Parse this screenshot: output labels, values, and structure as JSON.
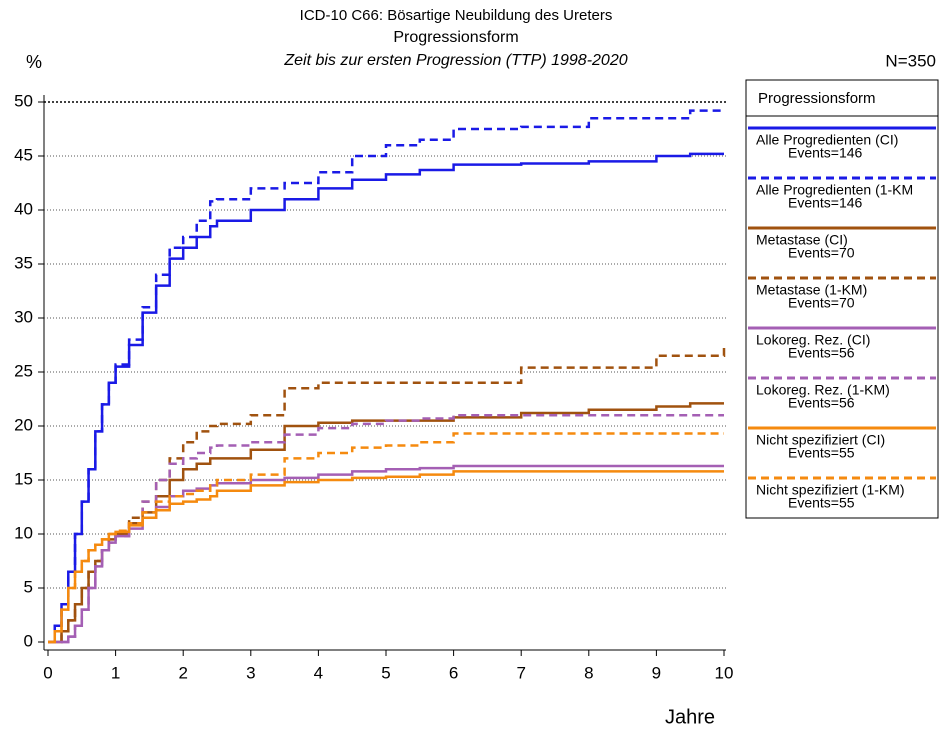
{
  "chart_data": {
    "type": "line",
    "title": "ICD-10 C66: Bösartige Neubildung des Ureters",
    "subtitle": "Progressionsform",
    "subtitle2": "Zeit bis zur ersten Progression (TTP) 1998-2020",
    "y_label": "%",
    "x_label": "Jahre",
    "n_label": "N=350",
    "legend_title": "Progressionsform",
    "step": true,
    "grid": true,
    "xlim": [
      0,
      10
    ],
    "xticks": [
      0,
      1,
      2,
      3,
      4,
      5,
      6,
      7,
      8,
      9,
      10
    ],
    "ylim": [
      0,
      50
    ],
    "yticks": [
      0,
      5,
      10,
      15,
      20,
      25,
      30,
      35,
      40,
      45,
      50
    ],
    "x": [
      0,
      0.1,
      0.2,
      0.3,
      0.4,
      0.5,
      0.6,
      0.7,
      0.8,
      0.9,
      1.0,
      1.2,
      1.4,
      1.6,
      1.8,
      2.0,
      2.2,
      2.4,
      2.5,
      3.0,
      3.5,
      4.0,
      4.5,
      5.0,
      5.5,
      6.0,
      7.0,
      8.0,
      9.0,
      9.5,
      10
    ],
    "series": [
      {
        "name": "Alle Progredienten (CI)",
        "events": "Events=146",
        "color": "#1a1ae6",
        "dashed": false,
        "values": [
          0,
          1.5,
          3.5,
          6.5,
          10,
          13,
          16,
          19.5,
          22,
          24,
          25.5,
          27.5,
          30.5,
          33,
          35.5,
          36.5,
          37.5,
          38.5,
          39,
          40,
          41,
          42,
          42.8,
          43.3,
          43.7,
          44.2,
          44.3,
          44.5,
          45,
          45.2,
          45.2
        ]
      },
      {
        "name": "Alle Progredienten (1-KM",
        "events": "Events=146",
        "color": "#1a1ae6",
        "dashed": true,
        "values": [
          0,
          1.5,
          3.5,
          6.5,
          10,
          13,
          16,
          19.5,
          22,
          24,
          25.7,
          28,
          31,
          34,
          36.5,
          37.5,
          39,
          40.8,
          41,
          42,
          42.5,
          43.5,
          45,
          46,
          46.5,
          47.5,
          47.7,
          48.5,
          48.5,
          49.2,
          49.2
        ]
      },
      {
        "name": "Metastase (CI)",
        "events": "Events=70",
        "color": "#a0520f",
        "dashed": false,
        "values": [
          0,
          0,
          1,
          2,
          3.5,
          5,
          6.5,
          7.5,
          8.5,
          9.5,
          10,
          11,
          12,
          13.5,
          15,
          16,
          16.5,
          17,
          17,
          17.8,
          20,
          20.3,
          20.5,
          20.5,
          20.5,
          20.8,
          21.2,
          21.5,
          21.8,
          22.1,
          22.1
        ]
      },
      {
        "name": "Metastase (1-KM)",
        "events": "Events=70",
        "color": "#a0520f",
        "dashed": true,
        "values": [
          0,
          0,
          1,
          2,
          3.5,
          5,
          6.5,
          7.5,
          8.5,
          9.5,
          10.2,
          11.5,
          13,
          15,
          17,
          18.5,
          19.5,
          20,
          20.2,
          21,
          23.5,
          24,
          24,
          24,
          24,
          24,
          25.4,
          25.4,
          26.5,
          26.5,
          27.3
        ]
      },
      {
        "name": "Lokoreg. Rez. (CI)",
        "events": "Events=56",
        "color": "#a45fb4",
        "dashed": false,
        "values": [
          0,
          0,
          0,
          0.5,
          1.5,
          3,
          5,
          7,
          8.5,
          9.2,
          9.8,
          10.5,
          11.5,
          12.5,
          13.5,
          14,
          14.2,
          14.5,
          14.7,
          15,
          15.2,
          15.5,
          15.8,
          16,
          16.1,
          16.3,
          16.3,
          16.3,
          16.3,
          16.3,
          16.3
        ]
      },
      {
        "name": "Lokoreg. Rez. (1-KM)",
        "events": "Events=56",
        "color": "#a45fb4",
        "dashed": true,
        "values": [
          0,
          0,
          0,
          0.5,
          1.5,
          3,
          5,
          7,
          8.5,
          9.2,
          9.8,
          11,
          13,
          15,
          16.5,
          17,
          17.5,
          18,
          18.2,
          18.5,
          19.2,
          19.8,
          20.2,
          20.5,
          20.7,
          21,
          21,
          21,
          21,
          21,
          21
        ]
      },
      {
        "name": "Nicht spezifiziert (CI)",
        "events": "Events=55",
        "color": "#f58a0f",
        "dashed": false,
        "values": [
          0,
          1,
          3,
          5,
          6.5,
          7.5,
          8.5,
          9,
          9.5,
          10,
          10.2,
          10.8,
          11.5,
          12.2,
          12.8,
          13,
          13.2,
          13.5,
          14,
          14.5,
          14.8,
          15,
          15.2,
          15.3,
          15.5,
          15.8,
          15.8,
          15.8,
          15.8,
          15.8,
          15.8
        ]
      },
      {
        "name": "Nicht spezifiziert (1-KM)",
        "events": "Events=55",
        "color": "#f58a0f",
        "dashed": true,
        "values": [
          0,
          1,
          3,
          5,
          6.5,
          7.5,
          8.5,
          9,
          9.5,
          10,
          10.3,
          11,
          12,
          13,
          13.5,
          13.7,
          14,
          14.5,
          15,
          15.5,
          17,
          17.5,
          18,
          18.2,
          18.5,
          19.3,
          19.3,
          19.3,
          19.3,
          19.3,
          19.3
        ]
      }
    ]
  }
}
